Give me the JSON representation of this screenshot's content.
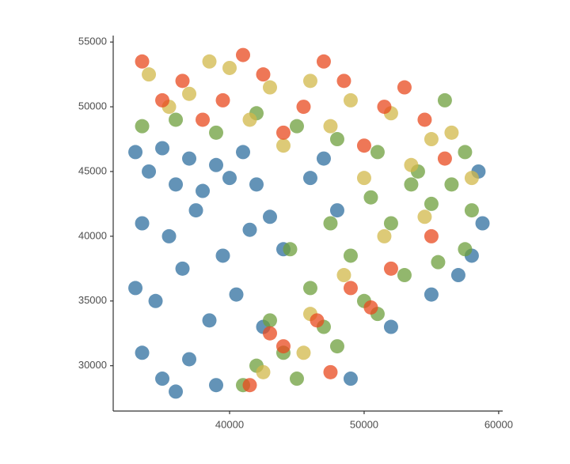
{
  "chart_data": {
    "type": "scatter",
    "xlim": [
      31350,
      60300
    ],
    "ylim": [
      26500,
      55500
    ],
    "xticks": [
      40000,
      50000,
      60000
    ],
    "yticks": [
      30000,
      35000,
      40000,
      45000,
      50000,
      55000
    ],
    "series": [
      {
        "color": "#2f6f9f",
        "x": [
          33000,
          34000,
          35000,
          36000,
          37000,
          38000,
          39000,
          40000,
          41000,
          42000,
          33500,
          35500,
          37500,
          39500,
          41500,
          43000,
          33000,
          34500,
          36500,
          38500,
          40500,
          42500,
          44000,
          33500,
          35000,
          37000,
          39000,
          58500,
          58800,
          58000,
          57000,
          55000,
          52000,
          49000,
          46000,
          48000,
          36000,
          47000
        ],
        "y": [
          46500,
          45000,
          46800,
          44000,
          46000,
          43500,
          45500,
          44500,
          46500,
          44000,
          41000,
          40000,
          42000,
          38500,
          40500,
          41500,
          36000,
          35000,
          37500,
          33500,
          35500,
          33000,
          39000,
          31000,
          29000,
          30500,
          28500,
          45000,
          41000,
          38500,
          37000,
          35500,
          33000,
          29000,
          44500,
          42000,
          28000,
          46000
        ]
      },
      {
        "color": "#6d9f3c",
        "x": [
          33500,
          36000,
          39000,
          42000,
          45000,
          48000,
          51000,
          54000,
          56500,
          58000,
          57500,
          55500,
          53000,
          50000,
          47000,
          44000,
          41000,
          43000,
          46000,
          49000,
          52000,
          55000,
          57500,
          45000,
          48000,
          51000,
          42000,
          44500,
          47500,
          50500,
          53500,
          56000
        ],
        "y": [
          48500,
          49000,
          48000,
          49500,
          48500,
          47500,
          46500,
          45000,
          44000,
          42000,
          39000,
          38000,
          37000,
          35000,
          33000,
          31000,
          28500,
          33500,
          36000,
          38500,
          41000,
          42500,
          46500,
          29000,
          31500,
          34000,
          30000,
          39000,
          41000,
          43000,
          44000,
          50500
        ]
      },
      {
        "color": "#d2b84a",
        "x": [
          34000,
          37000,
          40000,
          43000,
          46000,
          49000,
          52000,
          55000,
          35500,
          41500,
          47500,
          53500,
          56500,
          58000,
          50000,
          44000,
          46000,
          48500,
          51500,
          54500,
          42500,
          45500,
          38500
        ],
        "y": [
          52500,
          51000,
          53000,
          51500,
          52000,
          50500,
          49500,
          47500,
          50000,
          49000,
          48500,
          45500,
          48000,
          44500,
          44500,
          47000,
          34000,
          37000,
          40000,
          41500,
          29500,
          31000,
          53500
        ]
      },
      {
        "color": "#e84a1f",
        "x": [
          33500,
          36500,
          39500,
          42500,
          45500,
          48500,
          51500,
          54500,
          38000,
          44000,
          50000,
          35000,
          41000,
          47000,
          53000,
          56000,
          52000,
          49000,
          46500,
          44000,
          41500,
          47500,
          50500,
          55000,
          43000
        ],
        "y": [
          53500,
          52000,
          50500,
          52500,
          50000,
          52000,
          50000,
          49000,
          49000,
          48000,
          47000,
          50500,
          54000,
          53500,
          51500,
          46000,
          37500,
          36000,
          33500,
          31500,
          28500,
          29500,
          34500,
          40000,
          32500
        ]
      }
    ]
  }
}
